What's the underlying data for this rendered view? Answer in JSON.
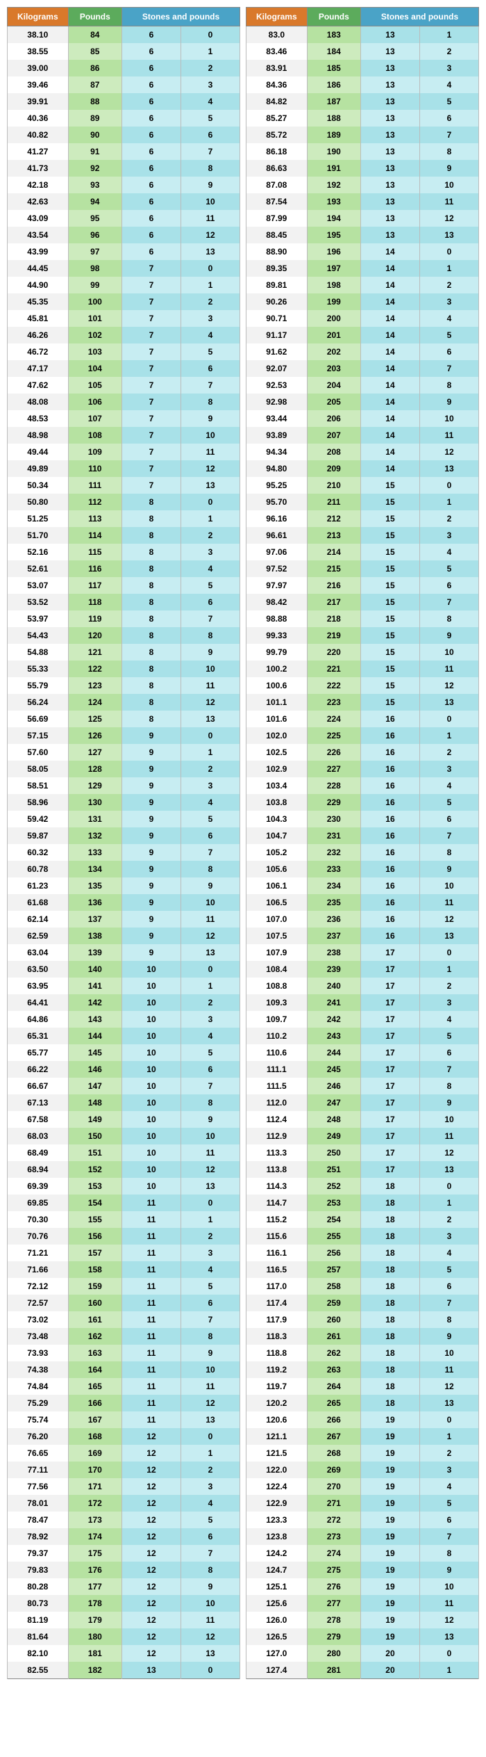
{
  "headers": {
    "kg": "Kilograms",
    "lb": "Pounds",
    "sp": "Stones and pounds"
  },
  "left": [
    [
      "38.10",
      "84",
      "6",
      "0"
    ],
    [
      "38.55",
      "85",
      "6",
      "1"
    ],
    [
      "39.00",
      "86",
      "6",
      "2"
    ],
    [
      "39.46",
      "87",
      "6",
      "3"
    ],
    [
      "39.91",
      "88",
      "6",
      "4"
    ],
    [
      "40.36",
      "89",
      "6",
      "5"
    ],
    [
      "40.82",
      "90",
      "6",
      "6"
    ],
    [
      "41.27",
      "91",
      "6",
      "7"
    ],
    [
      "41.73",
      "92",
      "6",
      "8"
    ],
    [
      "42.18",
      "93",
      "6",
      "9"
    ],
    [
      "42.63",
      "94",
      "6",
      "10"
    ],
    [
      "43.09",
      "95",
      "6",
      "11"
    ],
    [
      "43.54",
      "96",
      "6",
      "12"
    ],
    [
      "43.99",
      "97",
      "6",
      "13"
    ],
    [
      "44.45",
      "98",
      "7",
      "0"
    ],
    [
      "44.90",
      "99",
      "7",
      "1"
    ],
    [
      "45.35",
      "100",
      "7",
      "2"
    ],
    [
      "45.81",
      "101",
      "7",
      "3"
    ],
    [
      "46.26",
      "102",
      "7",
      "4"
    ],
    [
      "46.72",
      "103",
      "7",
      "5"
    ],
    [
      "47.17",
      "104",
      "7",
      "6"
    ],
    [
      "47.62",
      "105",
      "7",
      "7"
    ],
    [
      "48.08",
      "106",
      "7",
      "8"
    ],
    [
      "48.53",
      "107",
      "7",
      "9"
    ],
    [
      "48.98",
      "108",
      "7",
      "10"
    ],
    [
      "49.44",
      "109",
      "7",
      "11"
    ],
    [
      "49.89",
      "110",
      "7",
      "12"
    ],
    [
      "50.34",
      "111",
      "7",
      "13"
    ],
    [
      "50.80",
      "112",
      "8",
      "0"
    ],
    [
      "51.25",
      "113",
      "8",
      "1"
    ],
    [
      "51.70",
      "114",
      "8",
      "2"
    ],
    [
      "52.16",
      "115",
      "8",
      "3"
    ],
    [
      "52.61",
      "116",
      "8",
      "4"
    ],
    [
      "53.07",
      "117",
      "8",
      "5"
    ],
    [
      "53.52",
      "118",
      "8",
      "6"
    ],
    [
      "53.97",
      "119",
      "8",
      "7"
    ],
    [
      "54.43",
      "120",
      "8",
      "8"
    ],
    [
      "54.88",
      "121",
      "8",
      "9"
    ],
    [
      "55.33",
      "122",
      "8",
      "10"
    ],
    [
      "55.79",
      "123",
      "8",
      "11"
    ],
    [
      "56.24",
      "124",
      "8",
      "12"
    ],
    [
      "56.69",
      "125",
      "8",
      "13"
    ],
    [
      "57.15",
      "126",
      "9",
      "0"
    ],
    [
      "57.60",
      "127",
      "9",
      "1"
    ],
    [
      "58.05",
      "128",
      "9",
      "2"
    ],
    [
      "58.51",
      "129",
      "9",
      "3"
    ],
    [
      "58.96",
      "130",
      "9",
      "4"
    ],
    [
      "59.42",
      "131",
      "9",
      "5"
    ],
    [
      "59.87",
      "132",
      "9",
      "6"
    ],
    [
      "60.32",
      "133",
      "9",
      "7"
    ],
    [
      "60.78",
      "134",
      "9",
      "8"
    ],
    [
      "61.23",
      "135",
      "9",
      "9"
    ],
    [
      "61.68",
      "136",
      "9",
      "10"
    ],
    [
      "62.14",
      "137",
      "9",
      "11"
    ],
    [
      "62.59",
      "138",
      "9",
      "12"
    ],
    [
      "63.04",
      "139",
      "9",
      "13"
    ],
    [
      "63.50",
      "140",
      "10",
      "0"
    ],
    [
      "63.95",
      "141",
      "10",
      "1"
    ],
    [
      "64.41",
      "142",
      "10",
      "2"
    ],
    [
      "64.86",
      "143",
      "10",
      "3"
    ],
    [
      "65.31",
      "144",
      "10",
      "4"
    ],
    [
      "65.77",
      "145",
      "10",
      "5"
    ],
    [
      "66.22",
      "146",
      "10",
      "6"
    ],
    [
      "66.67",
      "147",
      "10",
      "7"
    ],
    [
      "67.13",
      "148",
      "10",
      "8"
    ],
    [
      "67.58",
      "149",
      "10",
      "9"
    ],
    [
      "68.03",
      "150",
      "10",
      "10"
    ],
    [
      "68.49",
      "151",
      "10",
      "11"
    ],
    [
      "68.94",
      "152",
      "10",
      "12"
    ],
    [
      "69.39",
      "153",
      "10",
      "13"
    ],
    [
      "69.85",
      "154",
      "11",
      "0"
    ],
    [
      "70.30",
      "155",
      "11",
      "1"
    ],
    [
      "70.76",
      "156",
      "11",
      "2"
    ],
    [
      "71.21",
      "157",
      "11",
      "3"
    ],
    [
      "71.66",
      "158",
      "11",
      "4"
    ],
    [
      "72.12",
      "159",
      "11",
      "5"
    ],
    [
      "72.57",
      "160",
      "11",
      "6"
    ],
    [
      "73.02",
      "161",
      "11",
      "7"
    ],
    [
      "73.48",
      "162",
      "11",
      "8"
    ],
    [
      "73.93",
      "163",
      "11",
      "9"
    ],
    [
      "74.38",
      "164",
      "11",
      "10"
    ],
    [
      "74.84",
      "165",
      "11",
      "11"
    ],
    [
      "75.29",
      "166",
      "11",
      "12"
    ],
    [
      "75.74",
      "167",
      "11",
      "13"
    ],
    [
      "76.20",
      "168",
      "12",
      "0"
    ],
    [
      "76.65",
      "169",
      "12",
      "1"
    ],
    [
      "77.11",
      "170",
      "12",
      "2"
    ],
    [
      "77.56",
      "171",
      "12",
      "3"
    ],
    [
      "78.01",
      "172",
      "12",
      "4"
    ],
    [
      "78.47",
      "173",
      "12",
      "5"
    ],
    [
      "78.92",
      "174",
      "12",
      "6"
    ],
    [
      "79.37",
      "175",
      "12",
      "7"
    ],
    [
      "79.83",
      "176",
      "12",
      "8"
    ],
    [
      "80.28",
      "177",
      "12",
      "9"
    ],
    [
      "80.73",
      "178",
      "12",
      "10"
    ],
    [
      "81.19",
      "179",
      "12",
      "11"
    ],
    [
      "81.64",
      "180",
      "12",
      "12"
    ],
    [
      "82.10",
      "181",
      "12",
      "13"
    ],
    [
      "82.55",
      "182",
      "13",
      "0"
    ]
  ],
  "right": [
    [
      "83.0",
      "183",
      "13",
      "1"
    ],
    [
      "83.46",
      "184",
      "13",
      "2"
    ],
    [
      "83.91",
      "185",
      "13",
      "3"
    ],
    [
      "84.36",
      "186",
      "13",
      "4"
    ],
    [
      "84.82",
      "187",
      "13",
      "5"
    ],
    [
      "85.27",
      "188",
      "13",
      "6"
    ],
    [
      "85.72",
      "189",
      "13",
      "7"
    ],
    [
      "86.18",
      "190",
      "13",
      "8"
    ],
    [
      "86.63",
      "191",
      "13",
      "9"
    ],
    [
      "87.08",
      "192",
      "13",
      "10"
    ],
    [
      "87.54",
      "193",
      "13",
      "11"
    ],
    [
      "87.99",
      "194",
      "13",
      "12"
    ],
    [
      "88.45",
      "195",
      "13",
      "13"
    ],
    [
      "88.90",
      "196",
      "14",
      "0"
    ],
    [
      "89.35",
      "197",
      "14",
      "1"
    ],
    [
      "89.81",
      "198",
      "14",
      "2"
    ],
    [
      "90.26",
      "199",
      "14",
      "3"
    ],
    [
      "90.71",
      "200",
      "14",
      "4"
    ],
    [
      "91.17",
      "201",
      "14",
      "5"
    ],
    [
      "91.62",
      "202",
      "14",
      "6"
    ],
    [
      "92.07",
      "203",
      "14",
      "7"
    ],
    [
      "92.53",
      "204",
      "14",
      "8"
    ],
    [
      "92.98",
      "205",
      "14",
      "9"
    ],
    [
      "93.44",
      "206",
      "14",
      "10"
    ],
    [
      "93.89",
      "207",
      "14",
      "11"
    ],
    [
      "94.34",
      "208",
      "14",
      "12"
    ],
    [
      "94.80",
      "209",
      "14",
      "13"
    ],
    [
      "95.25",
      "210",
      "15",
      "0"
    ],
    [
      "95.70",
      "211",
      "15",
      "1"
    ],
    [
      "96.16",
      "212",
      "15",
      "2"
    ],
    [
      "96.61",
      "213",
      "15",
      "3"
    ],
    [
      "97.06",
      "214",
      "15",
      "4"
    ],
    [
      "97.52",
      "215",
      "15",
      "5"
    ],
    [
      "97.97",
      "216",
      "15",
      "6"
    ],
    [
      "98.42",
      "217",
      "15",
      "7"
    ],
    [
      "98.88",
      "218",
      "15",
      "8"
    ],
    [
      "99.33",
      "219",
      "15",
      "9"
    ],
    [
      "99.79",
      "220",
      "15",
      "10"
    ],
    [
      "100.2",
      "221",
      "15",
      "11"
    ],
    [
      "100.6",
      "222",
      "15",
      "12"
    ],
    [
      "101.1",
      "223",
      "15",
      "13"
    ],
    [
      "101.6",
      "224",
      "16",
      "0"
    ],
    [
      "102.0",
      "225",
      "16",
      "1"
    ],
    [
      "102.5",
      "226",
      "16",
      "2"
    ],
    [
      "102.9",
      "227",
      "16",
      "3"
    ],
    [
      "103.4",
      "228",
      "16",
      "4"
    ],
    [
      "103.8",
      "229",
      "16",
      "5"
    ],
    [
      "104.3",
      "230",
      "16",
      "6"
    ],
    [
      "104.7",
      "231",
      "16",
      "7"
    ],
    [
      "105.2",
      "232",
      "16",
      "8"
    ],
    [
      "105.6",
      "233",
      "16",
      "9"
    ],
    [
      "106.1",
      "234",
      "16",
      "10"
    ],
    [
      "106.5",
      "235",
      "16",
      "11"
    ],
    [
      "107.0",
      "236",
      "16",
      "12"
    ],
    [
      "107.5",
      "237",
      "16",
      "13"
    ],
    [
      "107.9",
      "238",
      "17",
      "0"
    ],
    [
      "108.4",
      "239",
      "17",
      "1"
    ],
    [
      "108.8",
      "240",
      "17",
      "2"
    ],
    [
      "109.3",
      "241",
      "17",
      "3"
    ],
    [
      "109.7",
      "242",
      "17",
      "4"
    ],
    [
      "110.2",
      "243",
      "17",
      "5"
    ],
    [
      "110.6",
      "244",
      "17",
      "6"
    ],
    [
      "111.1",
      "245",
      "17",
      "7"
    ],
    [
      "111.5",
      "246",
      "17",
      "8"
    ],
    [
      "112.0",
      "247",
      "17",
      "9"
    ],
    [
      "112.4",
      "248",
      "17",
      "10"
    ],
    [
      "112.9",
      "249",
      "17",
      "11"
    ],
    [
      "113.3",
      "250",
      "17",
      "12"
    ],
    [
      "113.8",
      "251",
      "17",
      "13"
    ],
    [
      "114.3",
      "252",
      "18",
      "0"
    ],
    [
      "114.7",
      "253",
      "18",
      "1"
    ],
    [
      "115.2",
      "254",
      "18",
      "2"
    ],
    [
      "115.6",
      "255",
      "18",
      "3"
    ],
    [
      "116.1",
      "256",
      "18",
      "4"
    ],
    [
      "116.5",
      "257",
      "18",
      "5"
    ],
    [
      "117.0",
      "258",
      "18",
      "6"
    ],
    [
      "117.4",
      "259",
      "18",
      "7"
    ],
    [
      "117.9",
      "260",
      "18",
      "8"
    ],
    [
      "118.3",
      "261",
      "18",
      "9"
    ],
    [
      "118.8",
      "262",
      "18",
      "10"
    ],
    [
      "119.2",
      "263",
      "18",
      "11"
    ],
    [
      "119.7",
      "264",
      "18",
      "12"
    ],
    [
      "120.2",
      "265",
      "18",
      "13"
    ],
    [
      "120.6",
      "266",
      "19",
      "0"
    ],
    [
      "121.1",
      "267",
      "19",
      "1"
    ],
    [
      "121.5",
      "268",
      "19",
      "2"
    ],
    [
      "122.0",
      "269",
      "19",
      "3"
    ],
    [
      "122.4",
      "270",
      "19",
      "4"
    ],
    [
      "122.9",
      "271",
      "19",
      "5"
    ],
    [
      "123.3",
      "272",
      "19",
      "6"
    ],
    [
      "123.8",
      "273",
      "19",
      "7"
    ],
    [
      "124.2",
      "274",
      "19",
      "8"
    ],
    [
      "124.7",
      "275",
      "19",
      "9"
    ],
    [
      "125.1",
      "276",
      "19",
      "10"
    ],
    [
      "125.6",
      "277",
      "19",
      "11"
    ],
    [
      "126.0",
      "278",
      "19",
      "12"
    ],
    [
      "126.5",
      "279",
      "19",
      "13"
    ],
    [
      "127.0",
      "280",
      "20",
      "0"
    ],
    [
      "127.4",
      "281",
      "20",
      "1"
    ]
  ]
}
